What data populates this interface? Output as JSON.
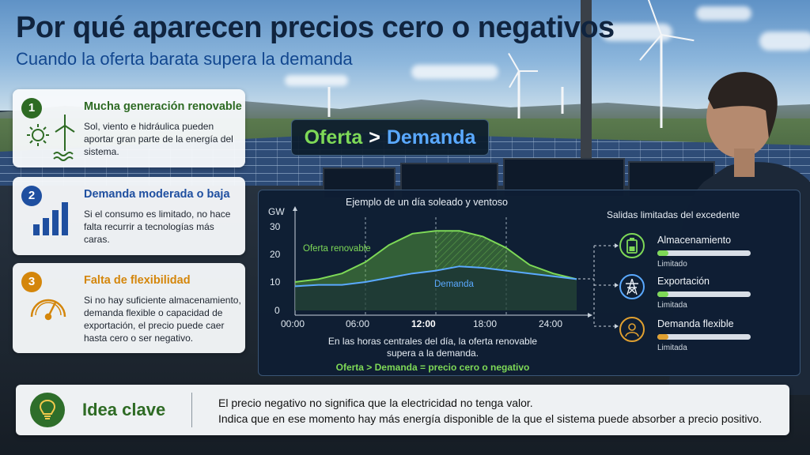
{
  "header": {
    "title": "Por qué aparecen precios cero o negativos",
    "subtitle": "Cuando la oferta barata supera la demanda"
  },
  "cards": [
    {
      "number": "1",
      "title": "Mucha generación renovable",
      "text": "Sol, viento e hidráulica pueden aportar gran parte de la energía del sistema.",
      "color": "#2e6b24",
      "icon": "sun-wind-water-icon"
    },
    {
      "number": "2",
      "title": "Demanda moderada o baja",
      "text": "Si el consumo es limitado, no hace falta recurrir a tecnologías más caras.",
      "color": "#1f4fa0",
      "icon": "bar-levels-icon"
    },
    {
      "number": "3",
      "title": "Falta de flexibilidad",
      "text": "Si no hay suficiente almacenamiento, demanda flexible o capacidad de exportación, el precio puede caer hasta cero o ser negativo.",
      "color": "#d4860b",
      "icon": "gauge-icon"
    }
  ],
  "badge": {
    "left": "Oferta",
    "op": ">",
    "right": "Demanda"
  },
  "chart_data": {
    "type": "area",
    "title": "Ejemplo de un día soleado y ventoso",
    "ylabel": "GW",
    "ylim": [
      0,
      30
    ],
    "yticks": [
      "30",
      "20",
      "10",
      "0"
    ],
    "x": [
      "00:00",
      "06:00",
      "12:00",
      "18:00",
      "24:00"
    ],
    "xlim": [
      0,
      24
    ],
    "series": [
      {
        "name": "Oferta renovable",
        "color": "#7ed957",
        "x": [
          0,
          2,
          4,
          6,
          8,
          10,
          12,
          14,
          16,
          18,
          20,
          22,
          24
        ],
        "values": [
          10,
          11,
          13,
          17,
          23,
          27,
          28,
          28,
          26,
          22,
          16,
          13,
          11
        ]
      },
      {
        "name": "Demanda",
        "color": "#5aa9ff",
        "x": [
          0,
          2,
          4,
          6,
          8,
          10,
          12,
          14,
          16,
          18,
          20,
          22,
          24
        ],
        "values": [
          8.5,
          9,
          9,
          10,
          11.5,
          13,
          14,
          15.5,
          15,
          14,
          13,
          12,
          11
        ]
      }
    ],
    "highlight_range": [
      12,
      18
    ],
    "note_lines": [
      "En las horas centrales del día, la oferta renovable",
      "supera a la demanda."
    ],
    "conclusion": "Oferta > Demanda = precio cero o negativo"
  },
  "outputs": {
    "title": "Salidas limitadas del excedente",
    "items": [
      {
        "label": "Almacenamiento",
        "status": "Limitado",
        "level": 0.12,
        "color": "#7ed957",
        "icon": "battery-icon"
      },
      {
        "label": "Exportación",
        "status": "Limitada",
        "level": 0.12,
        "color": "#7ed957",
        "icon": "power-tower-icon"
      },
      {
        "label": "Demanda flexible",
        "status": "Limitada",
        "level": 0.12,
        "color": "#e0a030",
        "icon": "person-icon"
      }
    ]
  },
  "key": {
    "title": "Idea clave",
    "line1": "El precio negativo no significa que la electricidad no tenga valor.",
    "line2": "Indica que en ese momento hay más energía disponible de la que el sistema puede absorber a precio positivo.",
    "icon": "lightbulb-icon"
  }
}
